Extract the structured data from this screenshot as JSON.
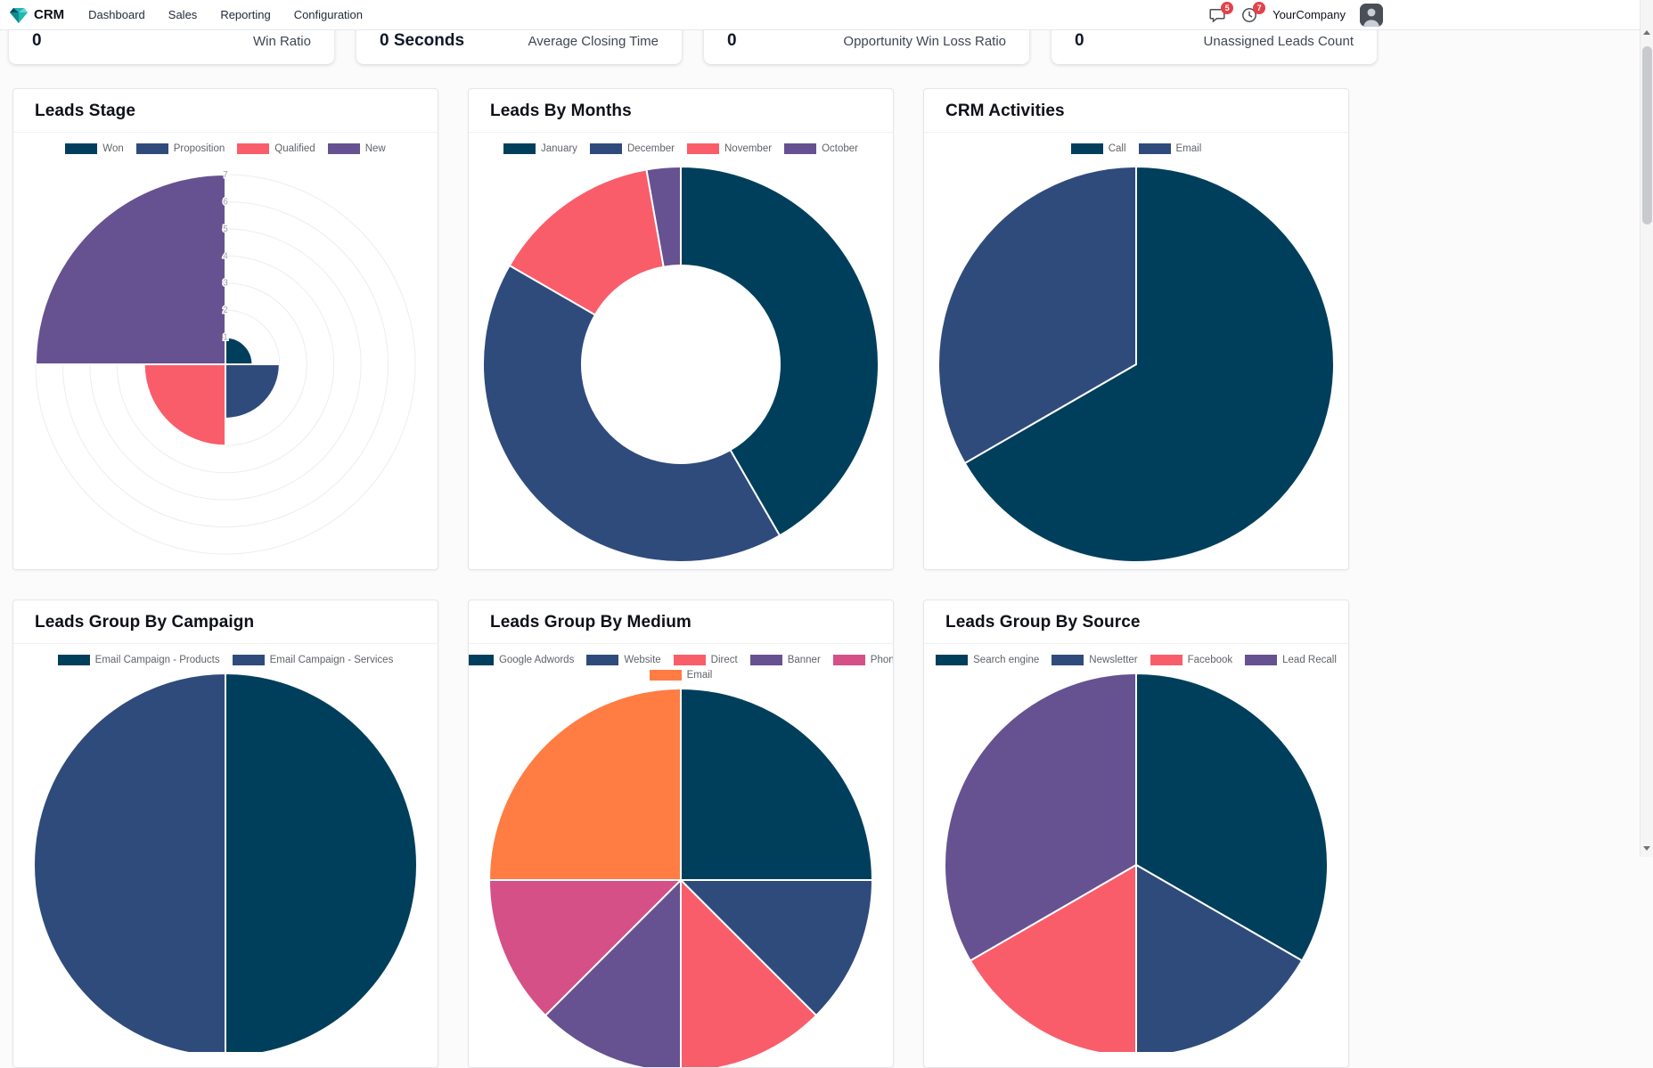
{
  "navbar": {
    "app_name": "CRM",
    "menu_items": [
      "Dashboard",
      "Sales",
      "Reporting",
      "Configuration"
    ],
    "messages_badge": "5",
    "activities_badge": "7",
    "company_name": "YourCompany"
  },
  "kpis": [
    {
      "value": "0",
      "label": "Win Ratio"
    },
    {
      "value": "0 Seconds",
      "label": "Average Closing Time"
    },
    {
      "value": "0",
      "label": "Opportunity Win Loss Ratio"
    },
    {
      "value": "0",
      "label": "Unassigned Leads Count"
    }
  ],
  "colors": {
    "dark_navy": "#003f5c",
    "navy": "#2f4b7c",
    "red": "#f95d6a",
    "purple": "#665191",
    "pink": "#d45087",
    "orange": "#ff7c43",
    "badge_red": "#e4414b"
  },
  "chart_data": [
    {
      "type": "polarArea",
      "title": "Leads Stage",
      "labels": [
        "Won",
        "Proposition",
        "Qualified",
        "New"
      ],
      "values": [
        1,
        2,
        3,
        7
      ],
      "colors": [
        "#003f5c",
        "#2f4b7c",
        "#f95d6a",
        "#665191"
      ],
      "r_axis": {
        "min": 0,
        "max": 7,
        "ticks": [
          1,
          2,
          3,
          4,
          5,
          6,
          7
        ]
      },
      "legend_position": "top",
      "grid": true
    },
    {
      "type": "doughnut",
      "title": "Leads By Months",
      "labels": [
        "January",
        "December",
        "November",
        "October"
      ],
      "values": [
        15,
        15,
        5,
        1
      ],
      "colors": [
        "#003f5c",
        "#2f4b7c",
        "#f95d6a",
        "#665191"
      ],
      "legend_position": "top"
    },
    {
      "type": "pie",
      "title": "CRM Activities",
      "labels": [
        "Call",
        "Email"
      ],
      "values": [
        2,
        1
      ],
      "colors": [
        "#003f5c",
        "#2f4b7c"
      ],
      "legend_position": "top"
    },
    {
      "type": "pie",
      "title": "Leads Group By Campaign",
      "labels": [
        "Email Campaign - Products",
        "Email Campaign - Services"
      ],
      "values": [
        1,
        1
      ],
      "colors": [
        "#003f5c",
        "#2f4b7c"
      ],
      "legend_position": "top"
    },
    {
      "type": "pie",
      "title": "Leads Group By Medium",
      "labels": [
        "Google Adwords",
        "Website",
        "Direct",
        "Banner",
        "Phone",
        "Email"
      ],
      "values": [
        2,
        1,
        1,
        1,
        1,
        2
      ],
      "colors": [
        "#003f5c",
        "#2f4b7c",
        "#f95d6a",
        "#665191",
        "#d45087",
        "#ff7c43"
      ],
      "legend_position": "top"
    },
    {
      "type": "pie",
      "title": "Leads Group By Source",
      "labels": [
        "Search engine",
        "Newsletter",
        "Facebook",
        "Lead Recall"
      ],
      "values": [
        2,
        1,
        1,
        2
      ],
      "colors": [
        "#003f5c",
        "#2f4b7c",
        "#f95d6a",
        "#665191"
      ],
      "legend_position": "top"
    }
  ]
}
